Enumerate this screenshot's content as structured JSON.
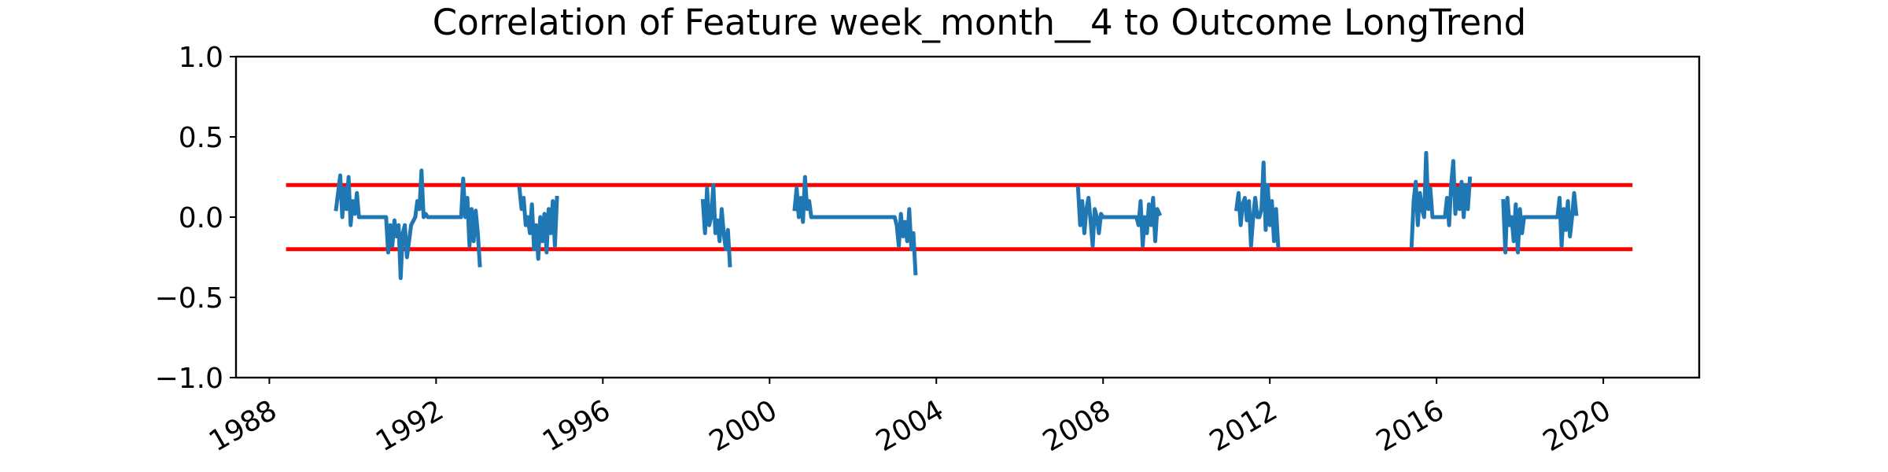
{
  "chart_data": {
    "type": "line",
    "title": "Correlation of Feature week_month__4 to Outcome LongTrend",
    "xlabel": "",
    "ylabel": "",
    "xlim": [
      1987.2,
      2022.3
    ],
    "ylim": [
      -1.0,
      1.0
    ],
    "x_ticks": [
      "1988",
      "1992",
      "1996",
      "2000",
      "2004",
      "2008",
      "2012",
      "2016",
      "2020"
    ],
    "y_ticks": [
      "1.0",
      "0.5",
      "0.0",
      "−0.5",
      "−1.0"
    ],
    "grid": false,
    "legend": "none",
    "colors": {
      "series": "#1f77b4",
      "threshold": "#ff0000",
      "axes": "#000000"
    },
    "thresholds": [
      {
        "value": 0.2,
        "x": [
          1988.4,
          2020.7
        ]
      },
      {
        "value": -0.2,
        "x": [
          1988.4,
          2020.7
        ]
      }
    ],
    "series": [
      {
        "segments": [
          {
            "x": [
              1989.6,
              1989.7,
              1989.75,
              1989.8,
              1989.85,
              1989.9,
              1989.95,
              1990.0,
              1990.05,
              1990.1,
              1990.15,
              1990.2,
              1990.8,
              1990.85,
              1990.9,
              1990.95,
              1991.0,
              1991.05,
              1991.1,
              1991.15,
              1991.2,
              1991.25,
              1991.3,
              1991.4,
              1991.5,
              1991.55,
              1991.6,
              1991.65,
              1991.7,
              1991.75,
              1991.8,
              1992.6,
              1992.65,
              1992.7,
              1992.75,
              1992.8,
              1992.85,
              1992.9,
              1992.95,
              1993.0,
              1993.05
            ],
            "y": [
              0.05,
              0.26,
              0.0,
              0.18,
              0.05,
              0.25,
              -0.05,
              0.1,
              0.02,
              0.15,
              0.0,
              0.0,
              0.0,
              -0.22,
              -0.05,
              -0.18,
              -0.02,
              -0.12,
              -0.05,
              -0.38,
              -0.1,
              -0.05,
              -0.25,
              -0.05,
              0.0,
              0.1,
              0.05,
              0.29,
              0.0,
              0.02,
              0.0,
              0.0,
              0.24,
              0.0,
              0.12,
              -0.18,
              0.05,
              -0.15,
              0.04,
              -0.1,
              -0.3
            ]
          },
          {
            "x": [
              1994.0,
              1994.05,
              1994.1,
              1994.15,
              1994.2,
              1994.25,
              1994.3,
              1994.35,
              1994.4,
              1994.45,
              1994.5,
              1994.55,
              1994.6,
              1994.65,
              1994.7,
              1994.75,
              1994.8,
              1994.85,
              1994.9
            ],
            "y": [
              0.18,
              0.05,
              0.12,
              -0.05,
              0.0,
              -0.1,
              0.08,
              -0.2,
              -0.05,
              -0.26,
              0.0,
              -0.15,
              0.02,
              -0.22,
              0.05,
              -0.1,
              0.1,
              -0.18,
              0.12
            ]
          },
          {
            "x": [
              1998.4,
              1998.45,
              1998.5,
              1998.55,
              1998.6,
              1998.65,
              1998.7,
              1998.75,
              1998.8,
              1998.85,
              1998.9,
              1998.95,
              1999.0,
              1999.05
            ],
            "y": [
              0.1,
              -0.1,
              0.18,
              -0.05,
              0.0,
              0.2,
              -0.1,
              -0.02,
              -0.15,
              0.05,
              -0.1,
              -0.2,
              -0.08,
              -0.3
            ]
          },
          {
            "x": [
              2000.6,
              2000.65,
              2000.7,
              2000.75,
              2000.8,
              2000.85,
              2000.9,
              2000.95,
              2001.0,
              2003.0,
              2003.05,
              2003.1,
              2003.15,
              2003.2,
              2003.25,
              2003.3,
              2003.35,
              2003.4,
              2003.45,
              2003.5
            ],
            "y": [
              0.05,
              0.18,
              0.0,
              0.12,
              -0.03,
              0.25,
              0.05,
              0.1,
              0.0,
              0.0,
              -0.05,
              -0.18,
              0.02,
              -0.12,
              -0.03,
              -0.15,
              0.05,
              -0.2,
              -0.1,
              -0.35
            ]
          },
          {
            "x": [
              2007.4,
              2007.45,
              2007.5,
              2007.55,
              2007.6,
              2007.65,
              2007.7,
              2007.75,
              2007.8,
              2007.85,
              2007.9,
              2007.95,
              2008.0,
              2008.8,
              2008.85,
              2008.9,
              2008.95,
              2009.0,
              2009.05,
              2009.1,
              2009.15,
              2009.2,
              2009.25,
              2009.3,
              2009.35
            ],
            "y": [
              0.18,
              -0.05,
              0.1,
              -0.1,
              0.05,
              0.12,
              -0.02,
              -0.18,
              0.05,
              0.0,
              -0.1,
              0.02,
              0.0,
              0.0,
              -0.05,
              0.1,
              -0.18,
              0.0,
              -0.1,
              0.08,
              -0.05,
              0.12,
              -0.15,
              0.05,
              0.02
            ]
          },
          {
            "x": [
              2011.2,
              2011.25,
              2011.3,
              2011.35,
              2011.4,
              2011.45,
              2011.5,
              2011.55,
              2011.6,
              2011.65,
              2011.7,
              2011.75,
              2011.8,
              2011.85,
              2011.9,
              2011.95,
              2012.0,
              2012.05,
              2012.1,
              2012.15,
              2012.2
            ],
            "y": [
              0.05,
              0.15,
              -0.05,
              0.08,
              0.12,
              -0.02,
              0.1,
              -0.18,
              0.0,
              0.12,
              0.0,
              0.0,
              0.05,
              0.34,
              -0.08,
              0.2,
              -0.05,
              0.1,
              -0.15,
              0.05,
              -0.18
            ]
          },
          {
            "x": [
              2015.4,
              2015.45,
              2015.5,
              2015.55,
              2015.6,
              2015.65,
              2015.7,
              2015.75,
              2015.8,
              2015.85,
              2015.9,
              2015.95,
              2016.0,
              2016.2,
              2016.25,
              2016.3,
              2016.35,
              2016.4,
              2016.45,
              2016.5,
              2016.55,
              2016.6,
              2016.65,
              2016.7,
              2016.75,
              2016.8
            ],
            "y": [
              -0.18,
              0.1,
              0.22,
              -0.05,
              0.15,
              0.05,
              0.0,
              0.4,
              0.05,
              0.18,
              0.0,
              0.0,
              0.0,
              0.0,
              0.12,
              -0.05,
              0.2,
              0.35,
              0.02,
              0.18,
              0.05,
              0.22,
              0.0,
              0.2,
              0.05,
              0.24
            ]
          },
          {
            "x": [
              2017.6,
              2017.65,
              2017.7,
              2017.75,
              2017.8,
              2017.85,
              2017.9,
              2017.95,
              2018.0,
              2018.05,
              2018.1,
              2018.15,
              2018.2,
              2018.9,
              2018.95,
              2019.0,
              2019.05,
              2019.1,
              2019.15,
              2019.2,
              2019.25,
              2019.3,
              2019.35
            ],
            "y": [
              0.1,
              -0.22,
              0.12,
              -0.05,
              0.0,
              -0.15,
              0.08,
              -0.22,
              0.05,
              -0.1,
              0.0,
              0.0,
              0.0,
              0.0,
              0.12,
              -0.18,
              0.05,
              -0.08,
              0.1,
              -0.12,
              0.0,
              0.15,
              0.02
            ]
          }
        ]
      }
    ]
  }
}
